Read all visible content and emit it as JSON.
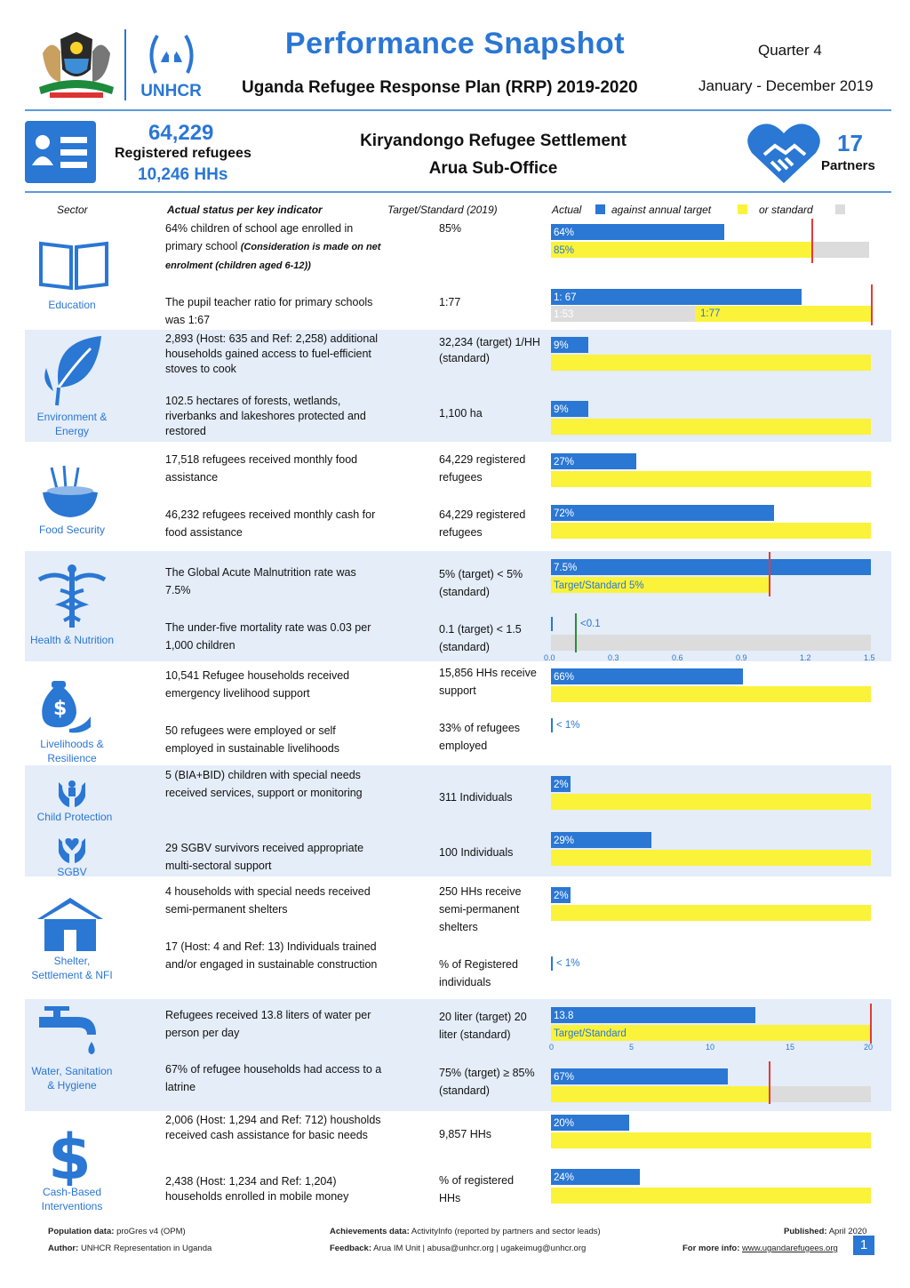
{
  "header": {
    "title": "Performance Snapshot",
    "subtitle": "Uganda Refugee Response Plan (RRP) 2019-2020",
    "quarter": "Quarter 4",
    "period": "January - December 2019",
    "unhcr_logo_text": "UNHCR"
  },
  "summary": {
    "refugees_count": "64,229",
    "refugees_label": "Registered refugees",
    "households": "10,246 HHs",
    "settlement": "Kiryandongo Refugee Settlement",
    "office": "Arua Sub-Office",
    "partners_count": "17",
    "partners_label": "Partners"
  },
  "table_header": {
    "sector": "Sector",
    "indicator": "Actual status per key indicator",
    "target": "Target/Standard (2019)",
    "actual": "Actual",
    "against": "against annual target",
    "or_standard": "or standard"
  },
  "colors": {
    "accent": "#2a77d4",
    "target": "#fbf23a",
    "standard": "#dcdcdc",
    "marker": "#e43b3b",
    "band": "#e4edf8"
  },
  "sectors": [
    {
      "icon": "book-icon",
      "label": "Education"
    },
    {
      "icon": "leaf-icon",
      "label": "Environment & Energy"
    },
    {
      "icon": "food-bowl-icon",
      "label": "Food Security"
    },
    {
      "icon": "caduceus-icon",
      "label": "Health & Nutrition"
    },
    {
      "icon": "money-bag-icon",
      "label": "Livelihoods & Resilience"
    },
    {
      "icon": "hands-child-icon",
      "label": "Child Protection"
    },
    {
      "icon": "hands-heart-icon",
      "label": "SGBV"
    },
    {
      "icon": "house-icon",
      "label": "Shelter, Settlement & NFI"
    },
    {
      "icon": "water-tap-icon",
      "label": "Water, Sanitation & Hygiene"
    },
    {
      "icon": "dollar-icon",
      "label": "Cash-Based Interventions"
    }
  ],
  "indicators": [
    {
      "text": "64% children of school age enrolled in primary school",
      "note": "(Consideration is made on net enrolment (children aged 6-12))",
      "target": "85%",
      "actual_label": "64%",
      "target_label": "85%",
      "actual_pct": 64,
      "target_pct": 85
    },
    {
      "text": "The pupil teacher ratio for primary schools was 1:67",
      "target": "1:77",
      "actual_label": "1: 67",
      "std_label": "1:53",
      "target_label": "1:77",
      "actual_ratio": 67,
      "target_ratio": 77,
      "std_ratio": 53
    },
    {
      "text": "2,893 (Host: 635 and Ref: 2,258) additional households gained access to fuel-efficient stoves to cook",
      "target": "32,234 (target) 1/HH (standard)",
      "actual_label": "9%",
      "actual_pct": 9
    },
    {
      "text": "102.5 hectares of forests, wetlands, riverbanks and lakeshores protected and restored",
      "target": "1,100 ha",
      "actual_label": "9%",
      "actual_pct": 9
    },
    {
      "text": "17,518 refugees received monthly food assistance",
      "target": "64,229 registered refugees",
      "actual_label": "27%",
      "actual_pct": 27
    },
    {
      "text": "46,232 refugees received monthly cash for food assistance",
      "target": "64,229 registered refugees",
      "actual_label": "72%",
      "actual_pct": 72
    },
    {
      "text": "The Global Acute Malnutrition rate was 7.5%",
      "target": "5% (target) < 5% (standard)",
      "actual_label": "7.5%",
      "target_label": "Target/Standard 5%",
      "actual_value": 7.5,
      "target_value": 5
    },
    {
      "text": "The under-five mortality rate was 0.03 per 1,000 children",
      "target": "0.1 (target) < 1.5 (standard)",
      "actual_label": "<0.1",
      "axis_ticks": [
        "0.0",
        "0.3",
        "0.6",
        "0.9",
        "1.2",
        "1.5"
      ],
      "actual_value": 0.03,
      "target_value": 0.1,
      "std_value": 1.5
    },
    {
      "text": "10,541 Refugee households received emergency livelihood support",
      "target": "15,856 HHs receive support",
      "actual_label": "66%",
      "actual_pct": 66
    },
    {
      "text": "50 refugees were employed or self employed in sustainable livelihoods",
      "target": "33% of refugees employed",
      "actual_label": "< 1%",
      "actual_pct": 0.5
    },
    {
      "text": "5 (BIA+BID) children with special needs received services, support or monitoring",
      "target": "311 Individuals",
      "actual_label": "2%",
      "actual_pct": 2
    },
    {
      "text": "29 SGBV survivors received appropriate multi-sectoral support",
      "target": "100 Individuals",
      "actual_label": "29%",
      "actual_pct": 29
    },
    {
      "text": "4 households with special needs received semi-permanent shelters",
      "target": "250 HHs receive semi-permanent shelters",
      "actual_label": "2%",
      "actual_pct": 2
    },
    {
      "text": "17 (Host: 4 and Ref: 13) Individuals trained and/or engaged in sustainable construction",
      "target": "% of Registered individuals",
      "actual_label": "< 1%",
      "actual_pct": 0.5
    },
    {
      "text": "Refugees received 13.8 liters of water per person per day",
      "target": "20 liter (target) 20 liter (standard)",
      "actual_label": "13.8",
      "target_label": "Target/Standard",
      "axis_ticks": [
        "0",
        "5",
        "10",
        "15",
        "20"
      ],
      "actual_value": 13.8,
      "target_value": 20
    },
    {
      "text": "67% of refugee households had access to a latrine",
      "target": "75% (target) ≥ 85% (standard)",
      "actual_label": "67%",
      "actual_pct": 67,
      "target_pct": 75,
      "std_pct": 85
    },
    {
      "text": "2,006 (Host: 1,294 and Ref: 712) housholds received cash assistance for basic needs",
      "target": "9,857 HHs",
      "actual_label": "20%",
      "actual_pct": 20
    },
    {
      "text": "2,438 (Host: 1,234 and Ref: 1,204) households enrolled in mobile money",
      "target": "% of registered HHs",
      "actual_label": "24%",
      "actual_pct": 24
    }
  ],
  "footer": {
    "population_label": "Population data:",
    "population_value": "proGres v4 (OPM)",
    "author_label": "Author:",
    "author_value": "UNHCR Representation in Uganda",
    "achievements_label": "Achievements data:",
    "achievements_value": "ActivityInfo (reported by partners and sector leads)",
    "feedback_label": "Feedback:",
    "feedback_value": "Arua IM Unit | abusa@unhcr.org | ugakeimug@unhcr.org",
    "published_label": "Published:",
    "published_value": "April 2020",
    "more_info_label": "For more info:",
    "more_info_link": "www.ugandarefugees.org",
    "page_number": "1"
  }
}
